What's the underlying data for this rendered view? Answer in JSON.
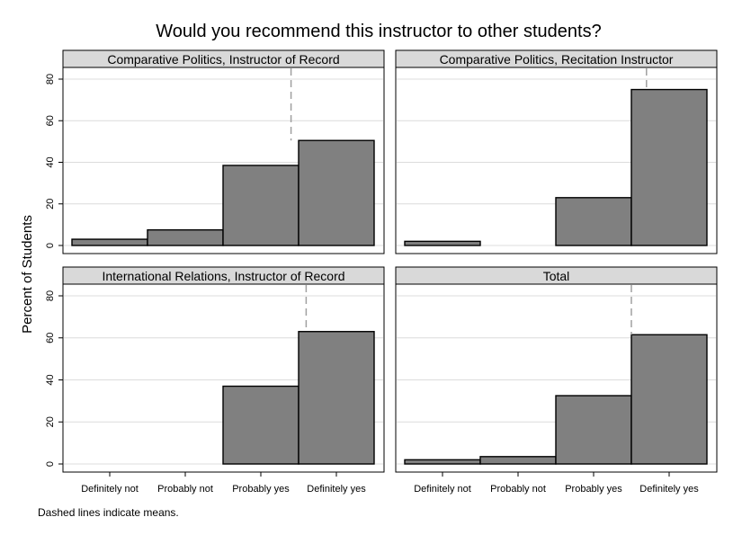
{
  "chart_data": {
    "type": "bar",
    "title": "Would you recommend this instructor to other students?",
    "ylabel": "Percent of Students",
    "note": "Dashed lines indicate means.",
    "ylim": [
      0,
      85
    ],
    "yticks": [
      "0",
      "20",
      "40",
      "60",
      "80"
    ],
    "categories": [
      "Definitely not",
      "Probably not",
      "Probably yes",
      "Definitely yes"
    ],
    "grid": true,
    "panels": [
      {
        "title": "Comparative Politics, Instructor of Record",
        "values": [
          3,
          7.5,
          38.5,
          50.5
        ],
        "mean": 3.4
      },
      {
        "title": "Comparative Politics, Recitation Instructor",
        "values": [
          2,
          0,
          23,
          75
        ],
        "mean": 3.7
      },
      {
        "title": "International Relations, Instructor of Record",
        "values": [
          0,
          0,
          37,
          63
        ],
        "mean": 3.6
      },
      {
        "title": "Total",
        "values": [
          2,
          3.5,
          32.5,
          61.5
        ],
        "mean": 3.5
      }
    ]
  }
}
